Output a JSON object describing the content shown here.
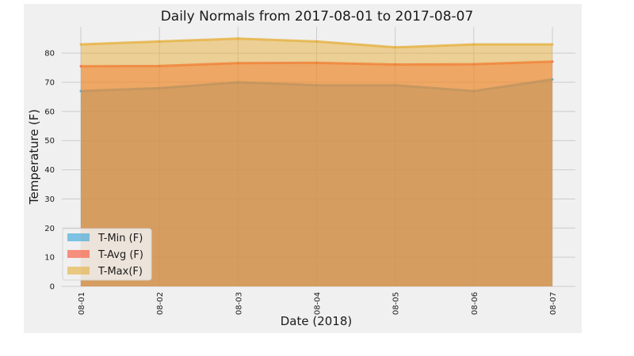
{
  "chart_data": {
    "type": "area",
    "title": "Daily Normals from 2017-08-01 to 2017-08-07",
    "xlabel": "Date (2018)",
    "ylabel": "Temperature (F)",
    "categories": [
      "08-01",
      "08-02",
      "08-03",
      "08-04",
      "08-05",
      "08-06",
      "08-07"
    ],
    "ylim": [
      0,
      89
    ],
    "yticks": [
      0,
      10,
      20,
      30,
      40,
      50,
      60,
      70,
      80
    ],
    "stacked": false,
    "grid": true,
    "legend_position": "lower-left",
    "series": [
      {
        "name": "T-Min (F)",
        "color": "#30a2da",
        "values": [
          67.0,
          68.0,
          70.0,
          69.0,
          69.0,
          67.0,
          71.0
        ]
      },
      {
        "name": "T-Avg (F)",
        "color": "#fc4f30",
        "values": [
          75.5,
          75.6,
          76.6,
          76.7,
          76.1,
          76.2,
          77.1
        ]
      },
      {
        "name": "T-Max(F)",
        "color": "#e5ae38",
        "values": [
          83.0,
          84.0,
          85.0,
          84.0,
          82.0,
          83.0,
          83.0
        ]
      }
    ]
  }
}
